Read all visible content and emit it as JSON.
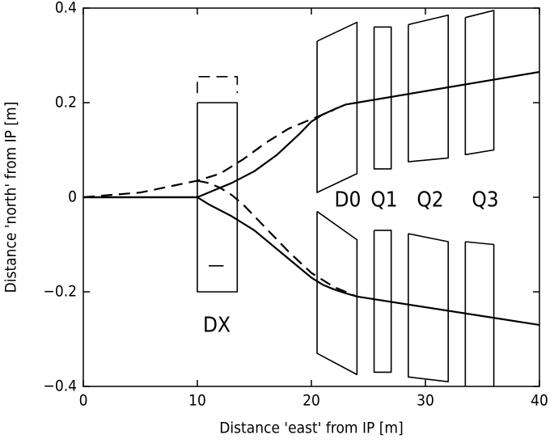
{
  "chart_data": {
    "type": "line",
    "xlabel": "Distance 'east' from IP [m]",
    "ylabel": "Distance 'north' from IP [m]",
    "xlim": [
      0,
      40
    ],
    "ylim": [
      -0.4,
      0.4
    ],
    "xticks": [
      0,
      10,
      20,
      30,
      40
    ],
    "yticks": [
      {
        "value": -0.4,
        "label": "−0.4"
      },
      {
        "value": -0.2,
        "label": "−0.2"
      },
      0,
      0.2,
      0.4
    ],
    "grid": false,
    "color": "#000000",
    "series": [
      {
        "dash": false,
        "x": [
          0,
          10,
          11,
          13,
          15,
          17,
          19,
          20,
          21,
          22,
          23,
          24,
          40
        ],
        "y": [
          0,
          0,
          0.01,
          0.03,
          0.055,
          0.09,
          0.135,
          0.16,
          0.175,
          0.186,
          0.196,
          0.2,
          0.265
        ]
      },
      {
        "dash": false,
        "x": [
          0,
          10,
          11,
          13,
          15,
          17,
          19,
          20,
          21,
          22,
          23,
          24,
          40
        ],
        "y": [
          0,
          0,
          -0.015,
          -0.04,
          -0.07,
          -0.11,
          -0.15,
          -0.17,
          -0.185,
          -0.195,
          -0.203,
          -0.21,
          -0.27
        ]
      },
      {
        "dash": true,
        "x": [
          0,
          5,
          8,
          10,
          12,
          14,
          16,
          18,
          20,
          22
        ],
        "y": [
          0,
          0.01,
          0.025,
          0.035,
          0.05,
          0.08,
          0.115,
          0.145,
          0.165,
          0.185
        ]
      },
      {
        "dash": true,
        "x": [
          10,
          11,
          12,
          13,
          14,
          15,
          16,
          18,
          20,
          22,
          24
        ],
        "y": [
          0.035,
          0.03,
          0.02,
          0.005,
          -0.015,
          -0.04,
          -0.065,
          -0.115,
          -0.16,
          -0.19,
          -0.21
        ]
      }
    ],
    "shapes": [
      {
        "dash": false,
        "x": [
          10,
          13.5,
          13.5,
          10,
          10
        ],
        "y": [
          0.2,
          0.2,
          -0.2,
          -0.2,
          0.2
        ]
      },
      {
        "dash": true,
        "x": [
          10,
          10,
          13.5,
          13.5
        ],
        "y": [
          0.22,
          0.255,
          0.255,
          0.22
        ]
      },
      {
        "dash": false,
        "x": [
          11,
          12.3
        ],
        "y": [
          -0.145,
          -0.145
        ]
      },
      {
        "dash": false,
        "x": [
          20.5,
          24,
          24,
          20.5,
          20.5
        ],
        "y": [
          0.33,
          0.37,
          0.05,
          0.01,
          0.33
        ]
      },
      {
        "dash": false,
        "x": [
          20.5,
          24,
          24,
          20.5,
          20.5
        ],
        "y": [
          -0.03,
          -0.09,
          -0.375,
          -0.33,
          -0.03
        ]
      },
      {
        "dash": false,
        "x": [
          25.5,
          27,
          27,
          25.5,
          25.5
        ],
        "y": [
          0.36,
          0.36,
          0.06,
          0.06,
          0.36
        ]
      },
      {
        "dash": false,
        "x": [
          25.5,
          27,
          27,
          25.5,
          25.5
        ],
        "y": [
          -0.07,
          -0.07,
          -0.37,
          -0.37,
          -0.07
        ]
      },
      {
        "dash": false,
        "x": [
          28.5,
          32,
          32,
          28.5,
          28.5
        ],
        "y": [
          0.365,
          0.385,
          0.083,
          0.075,
          0.365
        ]
      },
      {
        "dash": false,
        "x": [
          28.5,
          32,
          32,
          28.5,
          28.5
        ],
        "y": [
          -0.077,
          -0.094,
          -0.39,
          -0.38,
          -0.077
        ]
      },
      {
        "dash": false,
        "x": [
          33.5,
          36,
          36,
          33.5,
          33.5
        ],
        "y": [
          0.38,
          0.395,
          0.1,
          0.09,
          0.38
        ]
      },
      {
        "dash": false,
        "x": [
          33.5,
          36,
          36,
          33.5,
          33.5
        ],
        "y": [
          -0.094,
          -0.1,
          -0.405,
          -0.4,
          -0.094
        ]
      }
    ],
    "annotations": [
      "DX",
      "D0",
      "Q1",
      "Q2",
      "Q3"
    ]
  }
}
